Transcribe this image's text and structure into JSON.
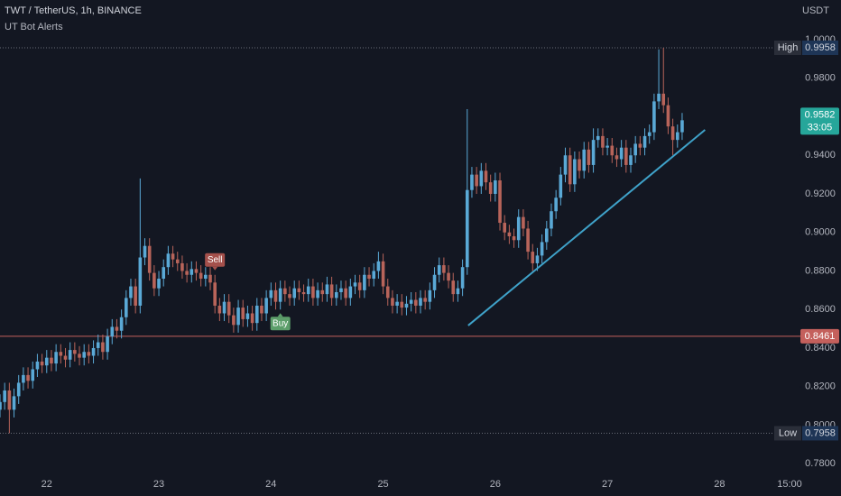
{
  "chart_data": {
    "type": "candlestick",
    "title": "TWT / TetherUS, 1h, BINANCE",
    "subtitle": "UT Bot Alerts",
    "unit": "USDT",
    "up_color": "#5aa9d6",
    "down_color": "#b8645a",
    "x": [
      -10,
      -9,
      -8,
      -7,
      -6,
      -5,
      -4,
      -3,
      -2,
      -1,
      0,
      1,
      2,
      3,
      4,
      5,
      6,
      7,
      8,
      9,
      10,
      11,
      12,
      13,
      14,
      15,
      16,
      17,
      18,
      19,
      20,
      21,
      22,
      23,
      24,
      25,
      26,
      27,
      28,
      29,
      30,
      31,
      32,
      33,
      34,
      35,
      36,
      37,
      38,
      39,
      40,
      41,
      42,
      43,
      44,
      45,
      46,
      47,
      48,
      49,
      50,
      51,
      52,
      53,
      54,
      55,
      56,
      57,
      58,
      59,
      60,
      61,
      62,
      63,
      64,
      65,
      66,
      67,
      68,
      69,
      70,
      71,
      72,
      73,
      74,
      75,
      76,
      77,
      78,
      79,
      80,
      81,
      82,
      83,
      84,
      85,
      86,
      87,
      88,
      89,
      90,
      91,
      92,
      93,
      94,
      95,
      96,
      97,
      98,
      99,
      100,
      101,
      102,
      103,
      104,
      105,
      106,
      107,
      108,
      109,
      110,
      111,
      112,
      113,
      114,
      115,
      116,
      117,
      118,
      119,
      120,
      121,
      122,
      123,
      124,
      125,
      126,
      127,
      128,
      129,
      130,
      131,
      132,
      133,
      134,
      135,
      136
    ],
    "open": [
      0.808,
      0.812,
      0.818,
      0.808,
      0.815,
      0.822,
      0.826,
      0.823,
      0.829,
      0.833,
      0.831,
      0.835,
      0.832,
      0.838,
      0.836,
      0.834,
      0.839,
      0.837,
      0.835,
      0.838,
      0.836,
      0.84,
      0.843,
      0.838,
      0.846,
      0.851,
      0.849,
      0.856,
      0.866,
      0.872,
      0.862,
      0.887,
      0.893,
      0.879,
      0.871,
      0.876,
      0.882,
      0.889,
      0.886,
      0.884,
      0.88,
      0.878,
      0.881,
      0.879,
      0.876,
      0.878,
      0.874,
      0.862,
      0.858,
      0.864,
      0.857,
      0.852,
      0.861,
      0.855,
      0.858,
      0.853,
      0.862,
      0.858,
      0.866,
      0.87,
      0.864,
      0.871,
      0.868,
      0.866,
      0.871,
      0.869,
      0.868,
      0.872,
      0.866,
      0.87,
      0.868,
      0.873,
      0.866,
      0.869,
      0.871,
      0.866,
      0.872,
      0.874,
      0.87,
      0.878,
      0.876,
      0.88,
      0.885,
      0.872,
      0.866,
      0.862,
      0.864,
      0.861,
      0.863,
      0.865,
      0.862,
      0.866,
      0.864,
      0.87,
      0.878,
      0.883,
      0.879,
      0.875,
      0.868,
      0.871,
      0.882,
      0.922,
      0.93,
      0.924,
      0.932,
      0.926,
      0.92,
      0.927,
      0.905,
      0.9,
      0.898,
      0.896,
      0.908,
      0.902,
      0.89,
      0.884,
      0.888,
      0.895,
      0.902,
      0.911,
      0.918,
      0.93,
      0.94,
      0.925,
      0.938,
      0.932,
      0.943,
      0.935,
      0.948,
      0.95,
      0.944,
      0.945,
      0.94,
      0.938,
      0.944,
      0.935,
      0.94,
      0.946,
      0.944,
      0.95,
      0.952,
      0.968,
      0.972,
      0.966,
      0.955,
      0.948,
      0.952
    ],
    "high": [
      0.816,
      0.822,
      0.822,
      0.819,
      0.826,
      0.83,
      0.83,
      0.833,
      0.837,
      0.837,
      0.839,
      0.839,
      0.842,
      0.842,
      0.84,
      0.843,
      0.843,
      0.841,
      0.842,
      0.842,
      0.844,
      0.847,
      0.847,
      0.85,
      0.855,
      0.855,
      0.86,
      0.87,
      0.876,
      0.876,
      0.928,
      0.897,
      0.897,
      0.883,
      0.88,
      0.886,
      0.893,
      0.893,
      0.89,
      0.888,
      0.884,
      0.885,
      0.885,
      0.883,
      0.882,
      0.882,
      0.878,
      0.866,
      0.868,
      0.868,
      0.861,
      0.865,
      0.865,
      0.862,
      0.862,
      0.866,
      0.866,
      0.87,
      0.874,
      0.874,
      0.875,
      0.875,
      0.872,
      0.875,
      0.875,
      0.873,
      0.876,
      0.876,
      0.874,
      0.874,
      0.877,
      0.877,
      0.873,
      0.875,
      0.875,
      0.876,
      0.878,
      0.878,
      0.882,
      0.882,
      0.884,
      0.89,
      0.889,
      0.876,
      0.87,
      0.868,
      0.868,
      0.867,
      0.869,
      0.869,
      0.87,
      0.87,
      0.874,
      0.882,
      0.887,
      0.887,
      0.883,
      0.879,
      0.875,
      0.886,
      0.964,
      0.934,
      0.934,
      0.936,
      0.936,
      0.93,
      0.931,
      0.931,
      0.909,
      0.904,
      0.902,
      0.912,
      0.912,
      0.906,
      0.894,
      0.892,
      0.899,
      0.906,
      0.915,
      0.922,
      0.934,
      0.944,
      0.944,
      0.942,
      0.942,
      0.947,
      0.947,
      0.954,
      0.954,
      0.954,
      0.949,
      0.949,
      0.944,
      0.948,
      0.948,
      0.944,
      0.95,
      0.95,
      0.954,
      0.956,
      0.972,
      0.995,
      0.9958,
      0.97,
      0.959,
      0.956,
      0.962
    ],
    "low": [
      0.804,
      0.808,
      0.7958,
      0.804,
      0.811,
      0.818,
      0.819,
      0.819,
      0.825,
      0.827,
      0.827,
      0.828,
      0.828,
      0.832,
      0.83,
      0.83,
      0.833,
      0.831,
      0.831,
      0.832,
      0.832,
      0.836,
      0.834,
      0.834,
      0.842,
      0.845,
      0.845,
      0.852,
      0.862,
      0.858,
      0.858,
      0.883,
      0.875,
      0.867,
      0.867,
      0.872,
      0.878,
      0.882,
      0.88,
      0.876,
      0.874,
      0.874,
      0.875,
      0.872,
      0.872,
      0.87,
      0.858,
      0.854,
      0.854,
      0.853,
      0.848,
      0.848,
      0.851,
      0.851,
      0.849,
      0.849,
      0.854,
      0.854,
      0.862,
      0.86,
      0.86,
      0.864,
      0.862,
      0.862,
      0.865,
      0.864,
      0.864,
      0.862,
      0.862,
      0.864,
      0.864,
      0.862,
      0.862,
      0.865,
      0.862,
      0.862,
      0.868,
      0.866,
      0.866,
      0.872,
      0.872,
      0.876,
      0.868,
      0.862,
      0.858,
      0.858,
      0.857,
      0.857,
      0.859,
      0.858,
      0.858,
      0.86,
      0.86,
      0.866,
      0.874,
      0.875,
      0.871,
      0.864,
      0.864,
      0.867,
      0.878,
      0.918,
      0.92,
      0.92,
      0.922,
      0.916,
      0.916,
      0.901,
      0.896,
      0.894,
      0.892,
      0.892,
      0.898,
      0.886,
      0.88,
      0.88,
      0.884,
      0.891,
      0.898,
      0.907,
      0.914,
      0.926,
      0.921,
      0.921,
      0.928,
      0.928,
      0.931,
      0.931,
      0.944,
      0.94,
      0.94,
      0.936,
      0.934,
      0.934,
      0.931,
      0.931,
      0.936,
      0.94,
      0.94,
      0.946,
      0.948,
      0.964,
      0.962,
      0.951,
      0.94,
      0.944,
      0.948
    ],
    "close": [
      0.812,
      0.818,
      0.808,
      0.815,
      0.822,
      0.826,
      0.823,
      0.829,
      0.833,
      0.831,
      0.835,
      0.832,
      0.838,
      0.836,
      0.834,
      0.839,
      0.837,
      0.835,
      0.838,
      0.836,
      0.84,
      0.843,
      0.838,
      0.846,
      0.851,
      0.849,
      0.856,
      0.866,
      0.872,
      0.862,
      0.887,
      0.893,
      0.879,
      0.871,
      0.876,
      0.882,
      0.889,
      0.886,
      0.884,
      0.88,
      0.878,
      0.881,
      0.879,
      0.876,
      0.878,
      0.874,
      0.862,
      0.858,
      0.864,
      0.857,
      0.852,
      0.861,
      0.855,
      0.858,
      0.853,
      0.862,
      0.858,
      0.866,
      0.87,
      0.864,
      0.871,
      0.868,
      0.866,
      0.871,
      0.869,
      0.868,
      0.872,
      0.866,
      0.87,
      0.868,
      0.873,
      0.866,
      0.869,
      0.871,
      0.866,
      0.872,
      0.874,
      0.87,
      0.878,
      0.876,
      0.88,
      0.885,
      0.872,
      0.866,
      0.862,
      0.864,
      0.861,
      0.863,
      0.865,
      0.862,
      0.866,
      0.864,
      0.87,
      0.878,
      0.883,
      0.879,
      0.875,
      0.868,
      0.871,
      0.882,
      0.922,
      0.93,
      0.924,
      0.932,
      0.926,
      0.92,
      0.927,
      0.905,
      0.9,
      0.898,
      0.896,
      0.908,
      0.902,
      0.89,
      0.884,
      0.888,
      0.895,
      0.902,
      0.911,
      0.918,
      0.93,
      0.94,
      0.925,
      0.938,
      0.932,
      0.943,
      0.935,
      0.948,
      0.95,
      0.944,
      0.945,
      0.94,
      0.938,
      0.944,
      0.935,
      0.94,
      0.946,
      0.944,
      0.95,
      0.952,
      0.968,
      0.972,
      0.966,
      0.955,
      0.948,
      0.952,
      0.9582
    ],
    "xlim": [
      -10,
      170
    ],
    "ylim": [
      0.7726,
      1.0206
    ],
    "xticks": [
      {
        "value": 0,
        "label": "22"
      },
      {
        "value": 24,
        "label": "23"
      },
      {
        "value": 48,
        "label": "24"
      },
      {
        "value": 72,
        "label": "25"
      },
      {
        "value": 96,
        "label": "26"
      },
      {
        "value": 120,
        "label": "27"
      },
      {
        "value": 144,
        "label": "28"
      },
      {
        "value": 159,
        "label": "15:00"
      }
    ],
    "yticks": [
      {
        "value": 0.78,
        "label": "0.7800"
      },
      {
        "value": 0.8,
        "label": "0.8000"
      },
      {
        "value": 0.82,
        "label": "0.8200"
      },
      {
        "value": 0.84,
        "label": "0.8400"
      },
      {
        "value": 0.86,
        "label": "0.8600"
      },
      {
        "value": 0.88,
        "label": "0.8800"
      },
      {
        "value": 0.9,
        "label": "0.9000"
      },
      {
        "value": 0.92,
        "label": "0.9200"
      },
      {
        "value": 0.94,
        "label": "0.9400"
      },
      {
        "value": 0.96,
        "label": "0.9600"
      },
      {
        "value": 0.98,
        "label": "0.9800"
      },
      {
        "value": 1,
        "label": "1.0000"
      }
    ],
    "levels": [
      {
        "name": "High",
        "value": 0.9958
      },
      {
        "name": "Low",
        "value": 0.7958
      }
    ],
    "price_line": {
      "value": 0.8461,
      "color": "#c4605c"
    },
    "countdown": "33:05",
    "last_price_color": "#26a69a",
    "signals": [
      {
        "label": "Sell",
        "x": 36,
        "color": "#a4504b",
        "side": "above"
      },
      {
        "label": "Buy",
        "x": 50,
        "color": "#5c9e6a",
        "side": "below"
      }
    ],
    "trendline": {
      "x": [
        90.2,
        140.9
      ],
      "values": [
        0.8517,
        0.9532
      ],
      "color": "#3fa2c9"
    }
  }
}
